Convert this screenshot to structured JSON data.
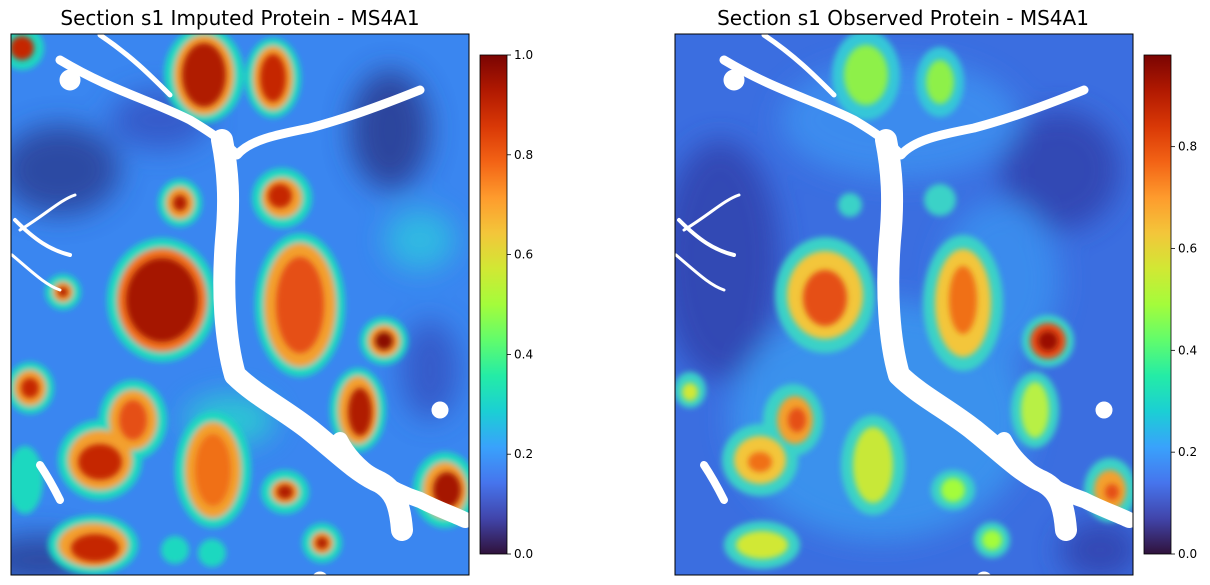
{
  "figure": {
    "panels": [
      {
        "title": "Section s1 Imputed Protein - MS4A1",
        "colorbar": {
          "min": 0.0,
          "max": 1.0,
          "ticks": [
            "0.0",
            "0.2",
            "0.4",
            "0.6",
            "0.8",
            "1.0"
          ]
        }
      },
      {
        "title": "Section s1 Observed Protein - MS4A1",
        "colorbar": {
          "min": 0.0,
          "max": 0.98,
          "ticks": [
            "0.0",
            "0.2",
            "0.4",
            "0.6",
            "0.8"
          ]
        }
      }
    ],
    "colormap": [
      "#30123b",
      "#4145ab",
      "#4675ed",
      "#39a2fc",
      "#1bcfd4",
      "#24eca6",
      "#61fc6c",
      "#a4fc3b",
      "#d1e834",
      "#f3c63a",
      "#fe9b2d",
      "#f36315",
      "#d93806",
      "#b11901",
      "#7a0402"
    ]
  },
  "chart_data": [
    {
      "type": "heatmap",
      "title": "Section s1 Imputed Protein - MS4A1",
      "colorbar_range": [
        0.0,
        1.0
      ],
      "colorbar_ticks": [
        0.0,
        0.2,
        0.4,
        0.6,
        0.8,
        1.0
      ],
      "axes_ticks": "none",
      "background_value": 0.22,
      "regions": [
        {
          "label": "follicle-top-1",
          "value": 0.95
        },
        {
          "label": "follicle-top-2",
          "value": 0.9
        },
        {
          "label": "follicle-top-left-corner",
          "value": 0.9
        },
        {
          "label": "follicle-small-left",
          "value": 0.9
        },
        {
          "label": "follicle-small-mid",
          "value": 0.85
        },
        {
          "label": "follicle-large-left",
          "value": 0.95
        },
        {
          "label": "follicle-large-center",
          "value": 0.8
        },
        {
          "label": "follicle-small-far-left",
          "value": 0.85
        },
        {
          "label": "follicle-right-mid",
          "value": 0.95
        },
        {
          "label": "follicle-right-lower",
          "value": 0.85
        },
        {
          "label": "follicle-lower-left",
          "value": 0.85
        },
        {
          "label": "follicle-lower-left-2",
          "value": 0.8
        },
        {
          "label": "follicle-lower-center",
          "value": 0.75
        },
        {
          "label": "follicle-lower-right",
          "value": 0.95
        },
        {
          "label": "follicle-bottom-1",
          "value": 0.85
        },
        {
          "label": "follicle-bottom-2",
          "value": 0.9
        },
        {
          "label": "follicle-bottom-3",
          "value": 0.85
        }
      ]
    },
    {
      "type": "heatmap",
      "title": "Section s1 Observed Protein - MS4A1",
      "colorbar_range": [
        0.0,
        0.98
      ],
      "colorbar_ticks": [
        0.0,
        0.2,
        0.4,
        0.6,
        0.8
      ],
      "axes_ticks": "none",
      "background_value": 0.18,
      "regions": [
        {
          "label": "follicle-top-1",
          "value": 0.45
        },
        {
          "label": "follicle-top-2",
          "value": 0.45
        },
        {
          "label": "follicle-large-left",
          "value": 0.75
        },
        {
          "label": "follicle-large-center",
          "value": 0.68
        },
        {
          "label": "follicle-right-mid",
          "value": 0.95
        },
        {
          "label": "follicle-lower-left",
          "value": 0.7
        },
        {
          "label": "follicle-lower-center",
          "value": 0.55
        },
        {
          "label": "follicle-lower-right",
          "value": 0.7
        },
        {
          "label": "follicle-bottom-1",
          "value": 0.55
        },
        {
          "label": "follicle-bottom-2",
          "value": 0.5
        }
      ]
    }
  ]
}
